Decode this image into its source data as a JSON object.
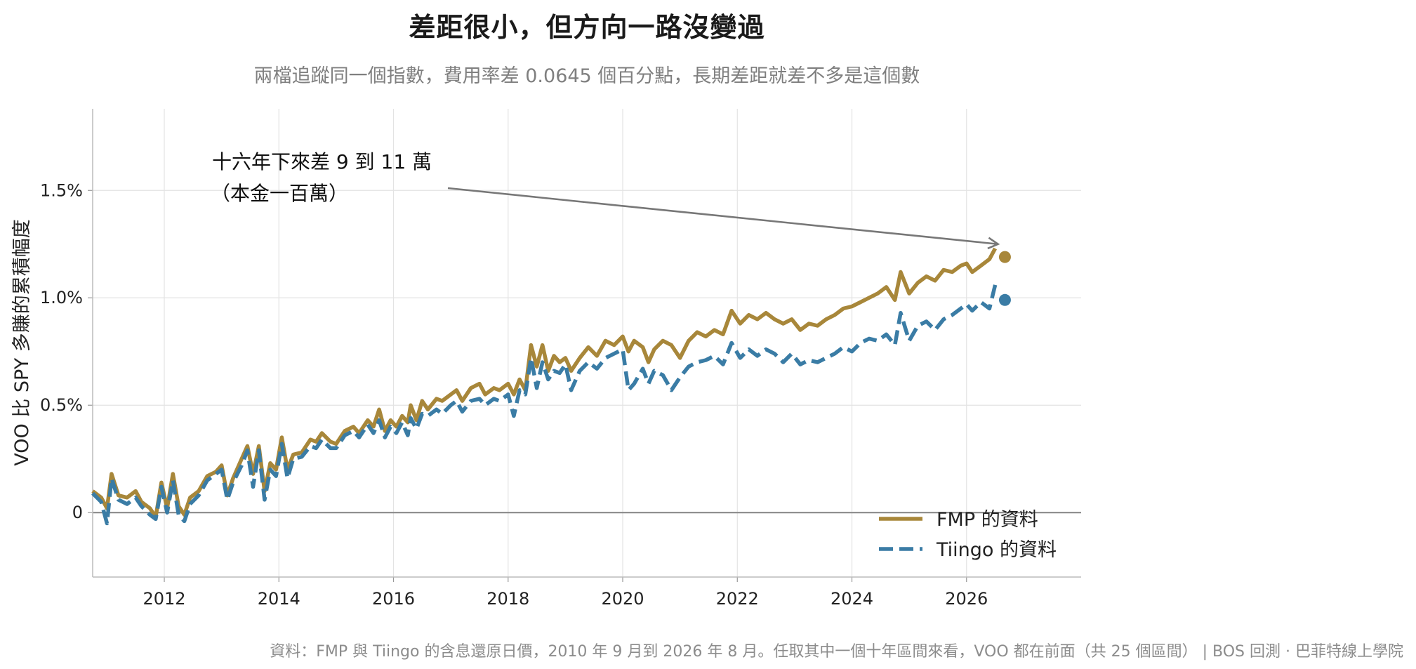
{
  "chart_data": {
    "type": "line",
    "title": "差距很小，但方向一路沒變過",
    "subtitle": "兩檔追蹤同一個指數，費用率差 0.0645 個百分點，長期差距就差不多是這個數",
    "ylabel": "VOO 比 SPY 多賺的累積幅度",
    "xlim": [
      2010.75,
      2028.0
    ],
    "ylim": [
      -0.3,
      1.88
    ],
    "x_ticks": [
      2012,
      2014,
      2016,
      2018,
      2020,
      2022,
      2024,
      2026
    ],
    "x_tick_labels": [
      "2012",
      "2014",
      "2016",
      "2018",
      "2020",
      "2022",
      "2024",
      "2026"
    ],
    "y_ticks": [
      0,
      0.5,
      1.0,
      1.5
    ],
    "y_tick_labels": [
      "0",
      "0.5%",
      "1.0%",
      "1.5%"
    ],
    "grid": true,
    "legend_position": "bottom-right",
    "annotation": {
      "line1": "十六年下來差 9 到 11 萬",
      "line2": "（本金一百萬）",
      "target": [
        2026.55,
        1.25
      ]
    },
    "series": [
      {
        "name": "FMP 的資料",
        "color": "#a8873a",
        "style": "solid",
        "end_marker": [
          2026.67,
          1.19
        ],
        "points": [
          [
            2010.75,
            0.1
          ],
          [
            2010.9,
            0.07
          ],
          [
            2011.0,
            0.02
          ],
          [
            2011.08,
            0.18
          ],
          [
            2011.2,
            0.08
          ],
          [
            2011.35,
            0.07
          ],
          [
            2011.5,
            0.1
          ],
          [
            2011.6,
            0.05
          ],
          [
            2011.75,
            0.02
          ],
          [
            2011.85,
            -0.02
          ],
          [
            2011.95,
            0.14
          ],
          [
            2012.05,
            0.02
          ],
          [
            2012.15,
            0.18
          ],
          [
            2012.25,
            0.03
          ],
          [
            2012.35,
            -0.01
          ],
          [
            2012.45,
            0.07
          ],
          [
            2012.6,
            0.1
          ],
          [
            2012.75,
            0.17
          ],
          [
            2012.9,
            0.19
          ],
          [
            2013.0,
            0.22
          ],
          [
            2013.1,
            0.08
          ],
          [
            2013.2,
            0.16
          ],
          [
            2013.35,
            0.25
          ],
          [
            2013.45,
            0.31
          ],
          [
            2013.55,
            0.18
          ],
          [
            2013.65,
            0.31
          ],
          [
            2013.75,
            0.1
          ],
          [
            2013.85,
            0.23
          ],
          [
            2013.95,
            0.2
          ],
          [
            2014.05,
            0.35
          ],
          [
            2014.15,
            0.2
          ],
          [
            2014.25,
            0.27
          ],
          [
            2014.4,
            0.28
          ],
          [
            2014.55,
            0.34
          ],
          [
            2014.65,
            0.33
          ],
          [
            2014.75,
            0.37
          ],
          [
            2014.9,
            0.33
          ],
          [
            2015.0,
            0.32
          ],
          [
            2015.15,
            0.38
          ],
          [
            2015.3,
            0.4
          ],
          [
            2015.4,
            0.37
          ],
          [
            2015.55,
            0.43
          ],
          [
            2015.65,
            0.4
          ],
          [
            2015.75,
            0.48
          ],
          [
            2015.85,
            0.38
          ],
          [
            2015.95,
            0.43
          ],
          [
            2016.05,
            0.4
          ],
          [
            2016.15,
            0.45
          ],
          [
            2016.25,
            0.42
          ],
          [
            2016.3,
            0.5
          ],
          [
            2016.4,
            0.43
          ],
          [
            2016.5,
            0.52
          ],
          [
            2016.6,
            0.48
          ],
          [
            2016.75,
            0.53
          ],
          [
            2016.85,
            0.52
          ],
          [
            2017.0,
            0.55
          ],
          [
            2017.1,
            0.57
          ],
          [
            2017.2,
            0.52
          ],
          [
            2017.35,
            0.58
          ],
          [
            2017.5,
            0.6
          ],
          [
            2017.6,
            0.55
          ],
          [
            2017.75,
            0.58
          ],
          [
            2017.85,
            0.57
          ],
          [
            2018.0,
            0.6
          ],
          [
            2018.1,
            0.55
          ],
          [
            2018.2,
            0.62
          ],
          [
            2018.3,
            0.57
          ],
          [
            2018.4,
            0.78
          ],
          [
            2018.5,
            0.68
          ],
          [
            2018.6,
            0.78
          ],
          [
            2018.7,
            0.66
          ],
          [
            2018.8,
            0.73
          ],
          [
            2018.9,
            0.7
          ],
          [
            2019.0,
            0.72
          ],
          [
            2019.1,
            0.66
          ],
          [
            2019.25,
            0.72
          ],
          [
            2019.4,
            0.77
          ],
          [
            2019.55,
            0.73
          ],
          [
            2019.7,
            0.8
          ],
          [
            2019.85,
            0.78
          ],
          [
            2020.0,
            0.82
          ],
          [
            2020.1,
            0.75
          ],
          [
            2020.2,
            0.8
          ],
          [
            2020.35,
            0.77
          ],
          [
            2020.45,
            0.7
          ],
          [
            2020.55,
            0.76
          ],
          [
            2020.7,
            0.8
          ],
          [
            2020.85,
            0.78
          ],
          [
            2021.0,
            0.72
          ],
          [
            2021.15,
            0.8
          ],
          [
            2021.3,
            0.84
          ],
          [
            2021.45,
            0.82
          ],
          [
            2021.6,
            0.85
          ],
          [
            2021.75,
            0.83
          ],
          [
            2021.9,
            0.94
          ],
          [
            2022.05,
            0.88
          ],
          [
            2022.2,
            0.92
          ],
          [
            2022.35,
            0.9
          ],
          [
            2022.5,
            0.93
          ],
          [
            2022.65,
            0.9
          ],
          [
            2022.8,
            0.88
          ],
          [
            2022.95,
            0.9
          ],
          [
            2023.1,
            0.85
          ],
          [
            2023.25,
            0.88
          ],
          [
            2023.4,
            0.87
          ],
          [
            2023.55,
            0.9
          ],
          [
            2023.7,
            0.92
          ],
          [
            2023.85,
            0.95
          ],
          [
            2024.0,
            0.96
          ],
          [
            2024.15,
            0.98
          ],
          [
            2024.3,
            1.0
          ],
          [
            2024.45,
            1.02
          ],
          [
            2024.6,
            1.05
          ],
          [
            2024.75,
            0.99
          ],
          [
            2024.85,
            1.12
          ],
          [
            2025.0,
            1.02
          ],
          [
            2025.15,
            1.07
          ],
          [
            2025.3,
            1.1
          ],
          [
            2025.45,
            1.08
          ],
          [
            2025.6,
            1.13
          ],
          [
            2025.75,
            1.12
          ],
          [
            2025.9,
            1.15
          ],
          [
            2026.0,
            1.16
          ],
          [
            2026.1,
            1.12
          ],
          [
            2026.25,
            1.15
          ],
          [
            2026.4,
            1.18
          ],
          [
            2026.5,
            1.23
          ]
        ]
      },
      {
        "name": "Tiingo 的資料",
        "color": "#3a7ca5",
        "style": "dashed",
        "end_marker": [
          2026.67,
          0.99
        ],
        "points": [
          [
            2010.75,
            0.09
          ],
          [
            2010.9,
            0.05
          ],
          [
            2011.0,
            -0.05
          ],
          [
            2011.08,
            0.16
          ],
          [
            2011.2,
            0.06
          ],
          [
            2011.35,
            0.04
          ],
          [
            2011.5,
            0.07
          ],
          [
            2011.6,
            0.03
          ],
          [
            2011.75,
            -0.01
          ],
          [
            2011.85,
            -0.03
          ],
          [
            2011.95,
            0.12
          ],
          [
            2012.05,
            0.0
          ],
          [
            2012.15,
            0.15
          ],
          [
            2012.25,
            -0.01
          ],
          [
            2012.35,
            -0.04
          ],
          [
            2012.45,
            0.04
          ],
          [
            2012.6,
            0.08
          ],
          [
            2012.75,
            0.15
          ],
          [
            2012.9,
            0.18
          ],
          [
            2013.0,
            0.2
          ],
          [
            2013.1,
            0.06
          ],
          [
            2013.2,
            0.14
          ],
          [
            2013.35,
            0.22
          ],
          [
            2013.45,
            0.29
          ],
          [
            2013.55,
            0.12
          ],
          [
            2013.65,
            0.29
          ],
          [
            2013.75,
            0.06
          ],
          [
            2013.85,
            0.2
          ],
          [
            2013.95,
            0.17
          ],
          [
            2014.05,
            0.32
          ],
          [
            2014.15,
            0.16
          ],
          [
            2014.25,
            0.25
          ],
          [
            2014.4,
            0.26
          ],
          [
            2014.55,
            0.31
          ],
          [
            2014.65,
            0.3
          ],
          [
            2014.75,
            0.34
          ],
          [
            2014.9,
            0.3
          ],
          [
            2015.0,
            0.3
          ],
          [
            2015.15,
            0.36
          ],
          [
            2015.3,
            0.38
          ],
          [
            2015.4,
            0.35
          ],
          [
            2015.55,
            0.41
          ],
          [
            2015.65,
            0.37
          ],
          [
            2015.75,
            0.43
          ],
          [
            2015.85,
            0.35
          ],
          [
            2015.95,
            0.4
          ],
          [
            2016.05,
            0.37
          ],
          [
            2016.15,
            0.42
          ],
          [
            2016.25,
            0.36
          ],
          [
            2016.3,
            0.44
          ],
          [
            2016.4,
            0.39
          ],
          [
            2016.5,
            0.46
          ],
          [
            2016.6,
            0.45
          ],
          [
            2016.75,
            0.48
          ],
          [
            2016.85,
            0.46
          ],
          [
            2017.0,
            0.5
          ],
          [
            2017.1,
            0.52
          ],
          [
            2017.2,
            0.47
          ],
          [
            2017.35,
            0.52
          ],
          [
            2017.5,
            0.53
          ],
          [
            2017.6,
            0.5
          ],
          [
            2017.75,
            0.53
          ],
          [
            2017.85,
            0.52
          ],
          [
            2018.0,
            0.55
          ],
          [
            2018.1,
            0.45
          ],
          [
            2018.2,
            0.57
          ],
          [
            2018.3,
            0.55
          ],
          [
            2018.4,
            0.72
          ],
          [
            2018.5,
            0.58
          ],
          [
            2018.6,
            0.7
          ],
          [
            2018.7,
            0.62
          ],
          [
            2018.8,
            0.66
          ],
          [
            2018.9,
            0.65
          ],
          [
            2019.0,
            0.69
          ],
          [
            2019.1,
            0.57
          ],
          [
            2019.25,
            0.66
          ],
          [
            2019.4,
            0.7
          ],
          [
            2019.55,
            0.67
          ],
          [
            2019.7,
            0.72
          ],
          [
            2019.85,
            0.74
          ],
          [
            2020.0,
            0.76
          ],
          [
            2020.1,
            0.57
          ],
          [
            2020.2,
            0.6
          ],
          [
            2020.35,
            0.67
          ],
          [
            2020.45,
            0.6
          ],
          [
            2020.55,
            0.66
          ],
          [
            2020.7,
            0.64
          ],
          [
            2020.85,
            0.57
          ],
          [
            2021.0,
            0.63
          ],
          [
            2021.15,
            0.68
          ],
          [
            2021.3,
            0.7
          ],
          [
            2021.45,
            0.71
          ],
          [
            2021.6,
            0.73
          ],
          [
            2021.75,
            0.69
          ],
          [
            2021.9,
            0.79
          ],
          [
            2022.05,
            0.72
          ],
          [
            2022.2,
            0.76
          ],
          [
            2022.35,
            0.73
          ],
          [
            2022.5,
            0.76
          ],
          [
            2022.65,
            0.74
          ],
          [
            2022.8,
            0.7
          ],
          [
            2022.95,
            0.74
          ],
          [
            2023.1,
            0.69
          ],
          [
            2023.25,
            0.71
          ],
          [
            2023.4,
            0.7
          ],
          [
            2023.55,
            0.72
          ],
          [
            2023.7,
            0.74
          ],
          [
            2023.85,
            0.77
          ],
          [
            2024.0,
            0.75
          ],
          [
            2024.15,
            0.79
          ],
          [
            2024.3,
            0.81
          ],
          [
            2024.45,
            0.8
          ],
          [
            2024.6,
            0.83
          ],
          [
            2024.75,
            0.78
          ],
          [
            2024.85,
            0.93
          ],
          [
            2025.0,
            0.8
          ],
          [
            2025.15,
            0.87
          ],
          [
            2025.3,
            0.89
          ],
          [
            2025.45,
            0.85
          ],
          [
            2025.6,
            0.9
          ],
          [
            2025.75,
            0.92
          ],
          [
            2025.9,
            0.95
          ],
          [
            2026.0,
            0.97
          ],
          [
            2026.1,
            0.94
          ],
          [
            2026.25,
            0.98
          ],
          [
            2026.4,
            0.95
          ],
          [
            2026.5,
            1.06
          ]
        ]
      }
    ]
  },
  "footer": "資料：FMP 與 Tiingo 的含息還原日價，2010 年 9 月到 2026 年 8 月。任取其中一個十年區間來看，VOO 都在前面（共 25 個區間） | BOS 回測 ·  巴菲特線上學院"
}
